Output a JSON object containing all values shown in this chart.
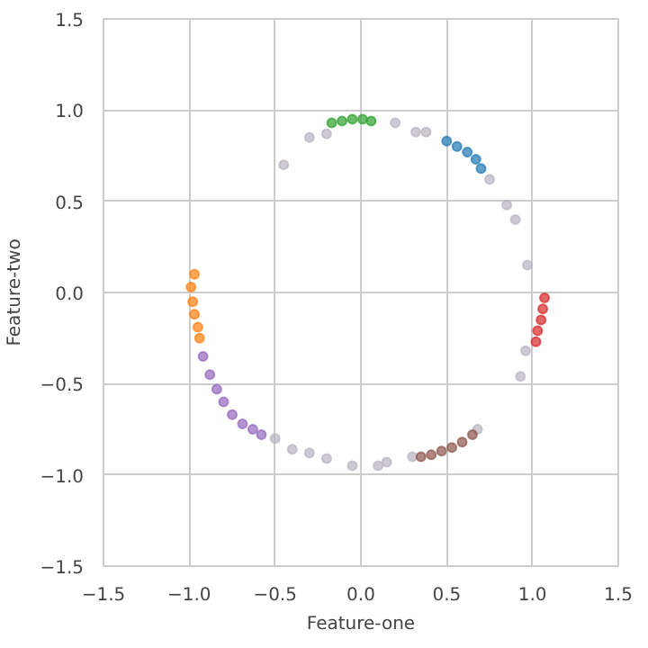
{
  "chart_data": {
    "type": "scatter",
    "xlabel": "Feature-one",
    "ylabel": "Feature-two",
    "xlim": [
      -1.5,
      1.5
    ],
    "ylim": [
      -1.5,
      1.5
    ],
    "xticks": [
      {
        "value": -1.5,
        "label": "−1.5"
      },
      {
        "value": -1.0,
        "label": "−1.0"
      },
      {
        "value": -0.5,
        "label": "−0.5"
      },
      {
        "value": 0.0,
        "label": "0.0"
      },
      {
        "value": 0.5,
        "label": "0.5"
      },
      {
        "value": 1.0,
        "label": "1.0"
      },
      {
        "value": 1.5,
        "label": "1.5"
      }
    ],
    "yticks": [
      {
        "value": -1.5,
        "label": "−1.5"
      },
      {
        "value": -1.0,
        "label": "−1.0"
      },
      {
        "value": -0.5,
        "label": "−0.5"
      },
      {
        "value": 0.0,
        "label": "0.0"
      },
      {
        "value": 0.5,
        "label": "0.5"
      },
      {
        "value": 1.0,
        "label": "1.0"
      },
      {
        "value": 1.5,
        "label": "1.5"
      }
    ],
    "grid": true,
    "marker": "circle",
    "series": [
      {
        "color": "#b8b4c0",
        "x": [
          -0.45,
          -0.3,
          -0.2,
          0.2,
          0.32,
          0.38,
          0.75,
          0.85,
          0.9,
          0.97,
          0.96,
          0.93,
          -0.5,
          -0.4,
          -0.3,
          -0.2,
          -0.05,
          0.1,
          0.15,
          0.3,
          0.68
        ],
        "values": [
          0.7,
          0.85,
          0.87,
          0.93,
          0.88,
          0.88,
          0.62,
          0.48,
          0.4,
          0.15,
          -0.32,
          -0.46,
          -0.8,
          -0.86,
          -0.88,
          -0.91,
          -0.95,
          -0.95,
          -0.93,
          -0.9,
          -0.75
        ]
      },
      {
        "color": "#2ca02c",
        "x": [
          -0.17,
          -0.11,
          -0.05,
          0.01,
          0.06
        ],
        "values": [
          0.93,
          0.94,
          0.95,
          0.95,
          0.94
        ]
      },
      {
        "color": "#1f77b4",
        "x": [
          0.5,
          0.56,
          0.62,
          0.67,
          0.7
        ],
        "values": [
          0.83,
          0.8,
          0.77,
          0.73,
          0.68
        ]
      },
      {
        "color": "#d62728",
        "x": [
          1.07,
          1.06,
          1.05,
          1.03,
          1.02
        ],
        "values": [
          -0.03,
          -0.09,
          -0.15,
          -0.21,
          -0.27
        ]
      },
      {
        "color": "#ff7f0e",
        "x": [
          -0.97,
          -0.99,
          -0.98,
          -0.97,
          -0.95,
          -0.94
        ],
        "values": [
          0.1,
          0.03,
          -0.05,
          -0.12,
          -0.19,
          -0.25
        ]
      },
      {
        "color": "#9467bd",
        "x": [
          -0.92,
          -0.88,
          -0.84,
          -0.8,
          -0.75,
          -0.69,
          -0.63,
          -0.58
        ],
        "values": [
          -0.35,
          -0.45,
          -0.53,
          -0.6,
          -0.67,
          -0.72,
          -0.75,
          -0.78
        ]
      },
      {
        "color": "#8c564b",
        "x": [
          0.35,
          0.41,
          0.47,
          0.53,
          0.59,
          0.65
        ],
        "values": [
          -0.9,
          -0.89,
          -0.87,
          -0.85,
          -0.82,
          -0.78
        ]
      }
    ]
  }
}
